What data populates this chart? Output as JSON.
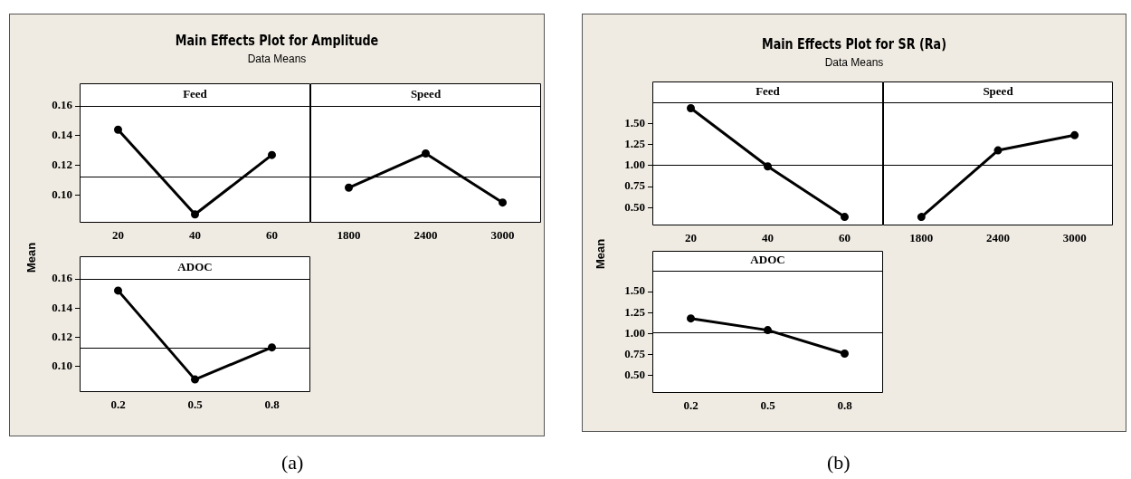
{
  "chart_data": [
    {
      "type": "other",
      "title": "Main Effects Plot for Amplitude",
      "subtitle": "Data Means",
      "annotations": [
        "(a)"
      ]
    },
    {
      "type": "line",
      "title": "Feed",
      "ylabel": "Mean",
      "categories": [
        "20",
        "40",
        "60"
      ],
      "series": [
        {
          "color": "#000000",
          "values": [
            0.144,
            0.087,
            0.127
          ]
        }
      ],
      "ylim": [
        0.082,
        0.16
      ],
      "yticks": [
        {
          "value": 0.1,
          "label": "0.10"
        },
        {
          "value": 0.12,
          "label": "0.12"
        },
        {
          "value": 0.14,
          "label": "0.14"
        },
        {
          "value": 0.16,
          "label": "0.16"
        }
      ],
      "ref_lines": [
        {
          "axis": "y",
          "value": 0.1125,
          "color": "#000000"
        }
      ],
      "marker": "circle",
      "line_style": "solid",
      "legend": false
    },
    {
      "type": "line",
      "title": "Speed",
      "categories": [
        "1800",
        "2400",
        "3000"
      ],
      "series": [
        {
          "color": "#000000",
          "values": [
            0.105,
            0.128,
            0.095
          ]
        }
      ],
      "ylim": [
        0.082,
        0.16
      ],
      "ref_lines": [
        {
          "axis": "y",
          "value": 0.1125,
          "color": "#000000"
        }
      ],
      "marker": "circle",
      "line_style": "solid",
      "legend": false,
      "tick_labels": "x"
    },
    {
      "type": "line",
      "title": "ADOC",
      "categories": [
        "0.2",
        "0.5",
        "0.8"
      ],
      "series": [
        {
          "color": "#000000",
          "values": [
            0.152,
            0.091,
            0.113
          ]
        }
      ],
      "ylim": [
        0.083,
        0.16
      ],
      "yticks": [
        {
          "value": 0.1,
          "label": "0.10"
        },
        {
          "value": 0.12,
          "label": "0.12"
        },
        {
          "value": 0.14,
          "label": "0.14"
        },
        {
          "value": 0.16,
          "label": "0.16"
        }
      ],
      "ref_lines": [
        {
          "axis": "y",
          "value": 0.1125,
          "color": "#000000"
        }
      ],
      "marker": "circle",
      "line_style": "solid",
      "legend": false
    },
    {
      "type": "other",
      "title": "Main Effects Plot for SR (Ra)",
      "subtitle": "Data Means",
      "annotations": [
        "(b)"
      ]
    },
    {
      "type": "line",
      "title": "Feed",
      "ylabel": "Mean",
      "categories": [
        "20",
        "40",
        "60"
      ],
      "series": [
        {
          "color": "#000000",
          "values": [
            1.68,
            0.99,
            0.39
          ]
        }
      ],
      "ylim": [
        0.3,
        1.75
      ],
      "yticks": [
        {
          "value": 0.5,
          "label": "0.50"
        },
        {
          "value": 0.75,
          "label": "0.75"
        },
        {
          "value": 1,
          "label": "1.00"
        },
        {
          "value": 1.25,
          "label": "1.25"
        },
        {
          "value": 1.5,
          "label": "1.50"
        }
      ],
      "ref_lines": [
        {
          "axis": "y",
          "value": 1.01,
          "color": "#000000"
        }
      ],
      "marker": "circle",
      "line_style": "solid",
      "legend": false
    },
    {
      "type": "line",
      "title": "Speed",
      "categories": [
        "1800",
        "2400",
        "3000"
      ],
      "series": [
        {
          "color": "#000000",
          "values": [
            0.39,
            1.18,
            1.36
          ]
        }
      ],
      "ylim": [
        0.3,
        1.75
      ],
      "ref_lines": [
        {
          "axis": "y",
          "value": 1.01,
          "color": "#000000"
        }
      ],
      "marker": "circle",
      "line_style": "solid",
      "legend": false,
      "tick_labels": "x"
    },
    {
      "type": "line",
      "title": "ADOC",
      "categories": [
        "0.2",
        "0.5",
        "0.8"
      ],
      "series": [
        {
          "color": "#000000",
          "values": [
            1.18,
            1.04,
            0.76
          ]
        }
      ],
      "ylim": [
        0.3,
        1.75
      ],
      "yticks": [
        {
          "value": 0.5,
          "label": "0.50"
        },
        {
          "value": 0.75,
          "label": "0.75"
        },
        {
          "value": 1,
          "label": "1.00"
        },
        {
          "value": 1.25,
          "label": "1.25"
        },
        {
          "value": 1.5,
          "label": "1.50"
        }
      ],
      "ref_lines": [
        {
          "axis": "y",
          "value": 1.01,
          "color": "#000000"
        }
      ],
      "marker": "circle",
      "line_style": "solid",
      "legend": false
    }
  ]
}
